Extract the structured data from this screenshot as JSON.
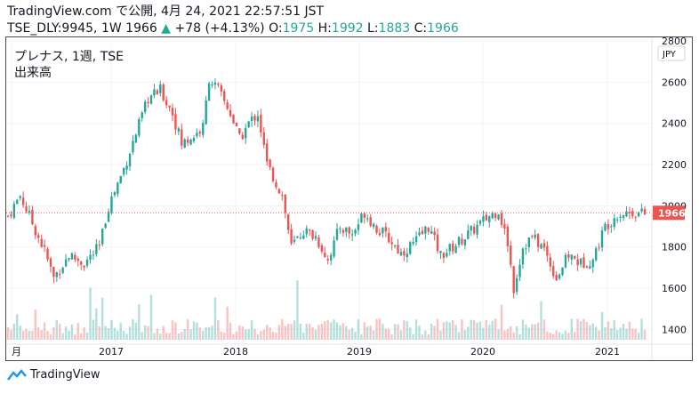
{
  "header": {
    "line1": "TradingView.com で公開, 4月 24, 2021 22:57:51 JST",
    "symbol": "TSE_DLY:9945, 1W",
    "price": "1966",
    "change_arrow": "▲",
    "change": "+78 (+4.13%)",
    "o_label": "O:",
    "o": "1975",
    "h_label": "H:",
    "h": "1992",
    "l_label": "L:",
    "l": "1883",
    "c_label": "C:",
    "c": "1966"
  },
  "overlay": {
    "name": "プレナス, 1週, TSE",
    "volume_label": "出来高"
  },
  "footer": {
    "brand": "TradingView"
  },
  "colors": {
    "up": "#26a69a",
    "down": "#ef5350",
    "price_label_bg": "#ef5350",
    "grid": "#f0f3fa"
  },
  "chart_data": {
    "type": "candlestick",
    "currency": "JPY",
    "last_price": 1966,
    "ylim": [
      1350,
      2800
    ],
    "y_ticks": [
      1400,
      1600,
      1800,
      2000,
      2200,
      2400,
      2600,
      2800
    ],
    "x_ticks": [
      "月",
      "2017",
      "2018",
      "2019",
      "2020",
      "2021"
    ],
    "close_path": [
      [
        0,
        1950
      ],
      [
        4,
        2050
      ],
      [
        7,
        1950
      ],
      [
        12,
        1780
      ],
      [
        15,
        1650
      ],
      [
        20,
        1760
      ],
      [
        25,
        1720
      ],
      [
        30,
        1800
      ],
      [
        33,
        2000
      ],
      [
        38,
        2180
      ],
      [
        42,
        2350
      ],
      [
        46,
        2520
      ],
      [
        50,
        2560
      ],
      [
        54,
        2450
      ],
      [
        57,
        2300
      ],
      [
        61,
        2340
      ],
      [
        64,
        2380
      ],
      [
        66,
        2620
      ],
      [
        69,
        2560
      ],
      [
        73,
        2450
      ],
      [
        76,
        2320
      ],
      [
        79,
        2400
      ],
      [
        82,
        2450
      ],
      [
        85,
        2200
      ],
      [
        90,
        2050
      ],
      [
        93,
        1800
      ],
      [
        97,
        1880
      ],
      [
        101,
        1850
      ],
      [
        105,
        1740
      ],
      [
        109,
        1900
      ],
      [
        113,
        1860
      ],
      [
        117,
        1970
      ],
      [
        121,
        1890
      ],
      [
        125,
        1840
      ],
      [
        129,
        1770
      ],
      [
        134,
        1830
      ],
      [
        138,
        1900
      ],
      [
        142,
        1760
      ],
      [
        146,
        1800
      ],
      [
        150,
        1850
      ],
      [
        154,
        1900
      ],
      [
        158,
        1950
      ],
      [
        161,
        1980
      ],
      [
        164,
        1820
      ],
      [
        166,
        1600
      ],
      [
        169,
        1800
      ],
      [
        172,
        1850
      ],
      [
        176,
        1790
      ],
      [
        180,
        1650
      ],
      [
        184,
        1760
      ],
      [
        188,
        1720
      ],
      [
        192,
        1740
      ],
      [
        196,
        1900
      ],
      [
        200,
        1960
      ],
      [
        205,
        1970
      ],
      [
        209,
        1960
      ]
    ]
  }
}
